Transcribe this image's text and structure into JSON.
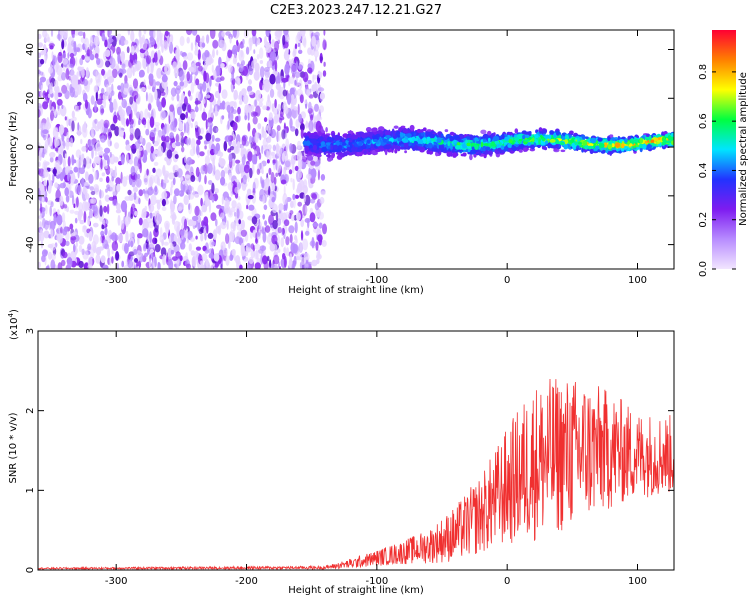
{
  "title": "C2E3.2023.247.12.21.G27",
  "chart_data": [
    {
      "type": "heatmap",
      "title": "C2E3.2023.247.12.21.G27",
      "xlabel": "Height of straight line (km)",
      "ylabel": "Frequency (Hz)",
      "xlim": [
        -360,
        128
      ],
      "ylim": [
        -50,
        48
      ],
      "xticks": [
        -300,
        -200,
        -100,
        0,
        100
      ],
      "yticks": [
        40,
        20,
        0,
        -20,
        -40
      ],
      "colorbar": {
        "label": "Normalized spectral amplitude",
        "range": [
          0,
          0.97
        ],
        "ticks": [
          0.0,
          0.2,
          0.4,
          0.6,
          0.8
        ],
        "colors": [
          "#f2e6ff",
          "#b78cff",
          "#7e1cf0",
          "#2233ff",
          "#00e5ff",
          "#00ff40",
          "#ffff00",
          "#ff8000",
          "#ff0033"
        ]
      },
      "regions": [
        {
          "description_x": [
            -360,
            -150
          ],
          "freq_range": [
            -50,
            48
          ],
          "amplitude": 0.05,
          "pattern": "noise"
        },
        {
          "description_x": [
            -155,
            128
          ],
          "freq_center": 2,
          "freq_halfwidth": 6,
          "amplitude_peak": 0.95,
          "pattern": "signal-band"
        }
      ]
    },
    {
      "type": "line",
      "xlabel": "Height of straight line (km)",
      "ylabel": "SNR (10 * v/v)",
      "yscale_label": "(x10",
      "yscale_exp": "4",
      "yscale_close": ")",
      "xlim": [
        -360,
        128
      ],
      "ylim": [
        0,
        3
      ],
      "xticks": [
        -300,
        -200,
        -100,
        0,
        100
      ],
      "yticks": [
        0,
        1,
        2,
        3
      ],
      "line_color": "#f03030",
      "envelope": {
        "x": [
          -360,
          -140,
          -120,
          -100,
          -80,
          -60,
          -40,
          -20,
          0,
          20,
          40,
          60,
          80,
          100,
          128
        ],
        "mean": [
          0.02,
          0.03,
          0.08,
          0.15,
          0.22,
          0.3,
          0.45,
          0.7,
          1.05,
          1.35,
          1.45,
          1.5,
          1.5,
          1.45,
          1.45
        ],
        "spread": [
          0.01,
          0.02,
          0.06,
          0.1,
          0.15,
          0.22,
          0.35,
          0.5,
          0.75,
          1.0,
          1.0,
          0.9,
          0.75,
          0.55,
          0.5
        ]
      }
    }
  ]
}
